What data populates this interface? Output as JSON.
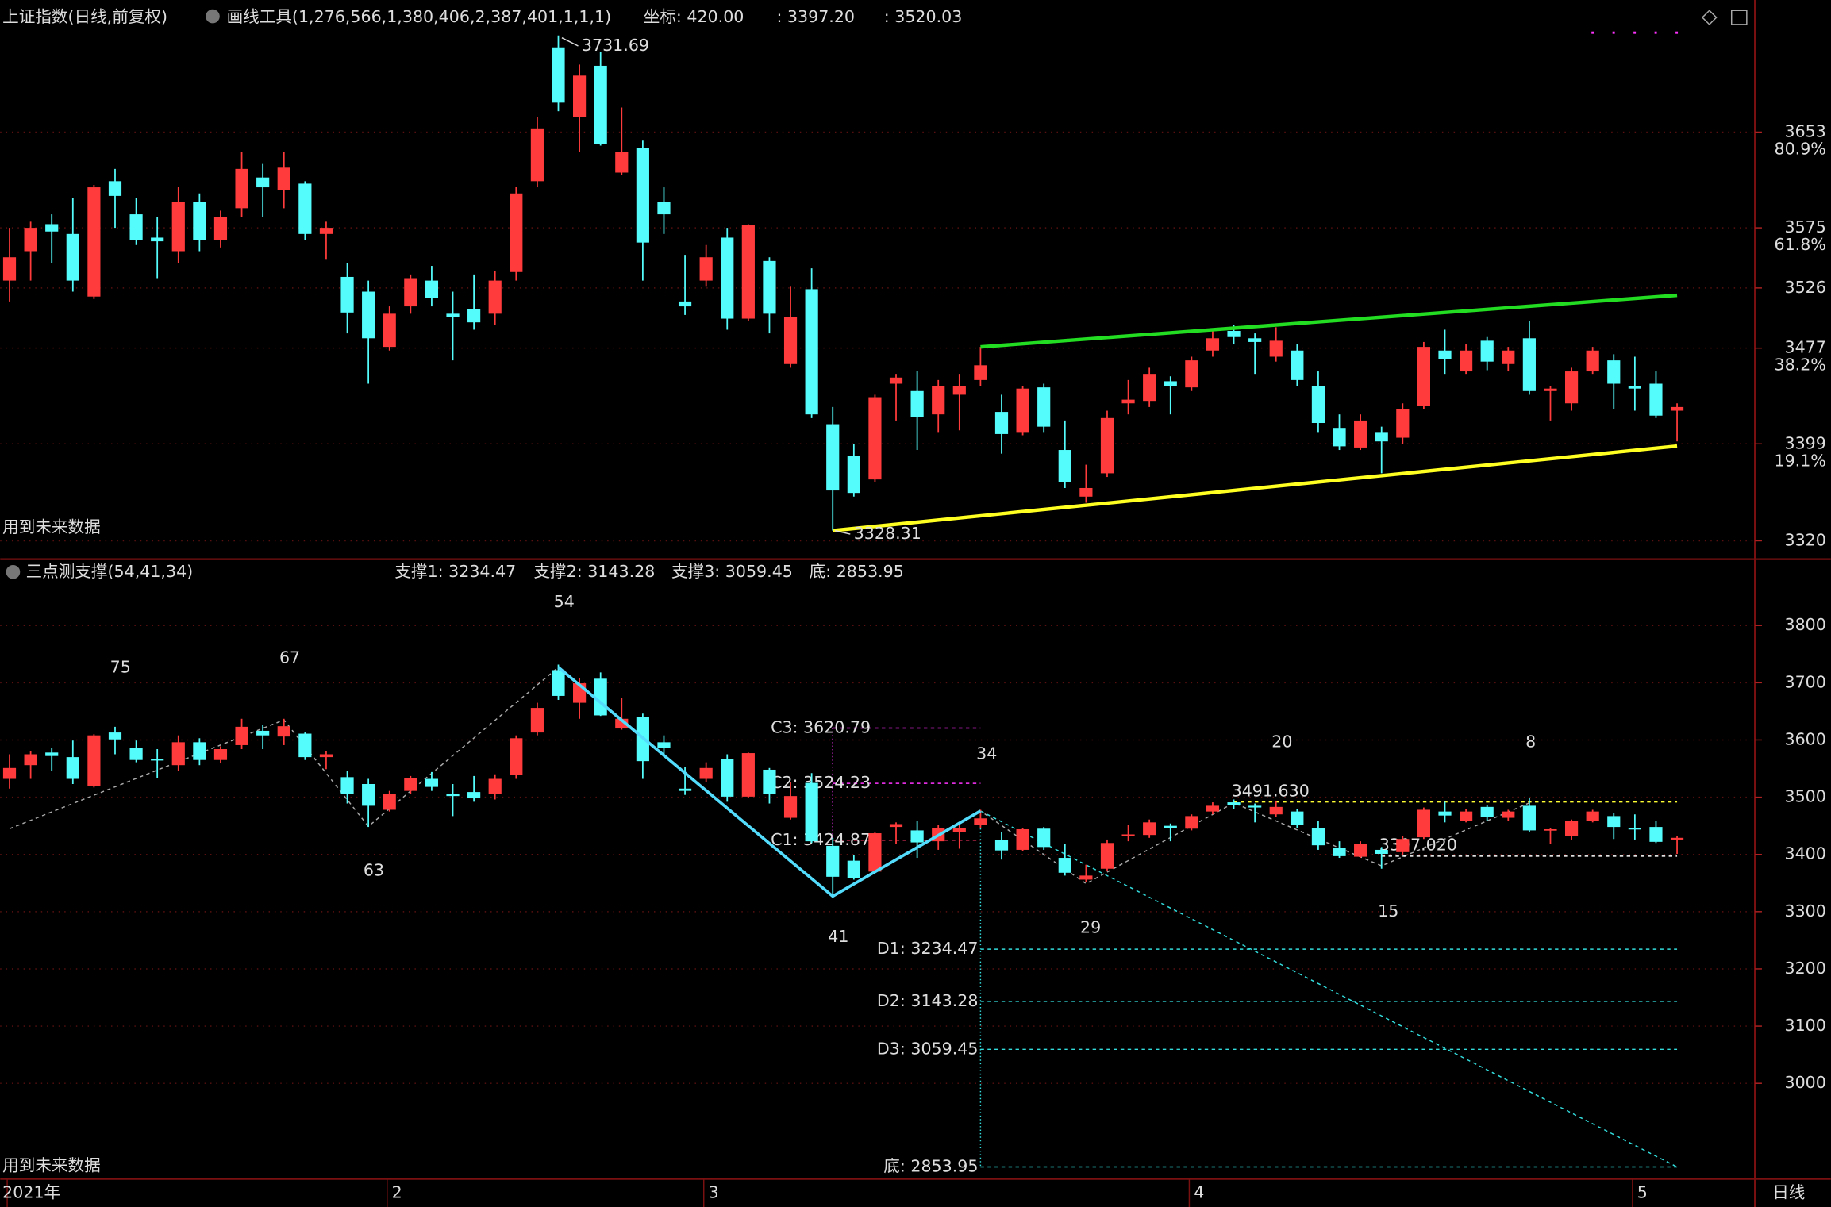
{
  "chart_data": [
    {
      "type": "candlestick",
      "title": "上证指数(日线,前复权)",
      "tool": "画线工具(1,276,566,1,380,406,2,387,401,1,1,1)",
      "coord": "坐标: 420.00",
      "readouts": [
        {
          "label": ": 3397.20",
          "color": "#ffff00"
        },
        {
          "label": ": 3520.03",
          "color": "#33ff33"
        }
      ],
      "note": "用到未来数据",
      "up_color": "#ff3b3b",
      "down_color": "#54fcfc",
      "categories": [
        "2021年",
        null,
        null,
        null,
        null,
        null,
        null,
        null,
        null,
        null,
        null,
        null,
        null,
        null,
        null,
        null,
        null,
        null,
        "2",
        null,
        null,
        null,
        null,
        null,
        null,
        null,
        null,
        null,
        null,
        null,
        null,
        null,
        null,
        "3",
        null,
        null,
        null,
        null,
        null,
        null,
        null,
        null,
        null,
        null,
        null,
        null,
        null,
        null,
        null,
        null,
        null,
        null,
        null,
        null,
        null,
        null,
        "4",
        null,
        null,
        null,
        null,
        null,
        null,
        null,
        null,
        null,
        null,
        null,
        null,
        null,
        null,
        null,
        null,
        null,
        null,
        null,
        null,
        "5",
        null,
        null
      ],
      "ohlc": [
        [
          3532,
          3575,
          3515,
          3551
        ],
        [
          3556,
          3580,
          3532,
          3575
        ],
        [
          3578,
          3586,
          3546,
          3572
        ],
        [
          3570,
          3599,
          3523,
          3532
        ],
        [
          3519,
          3610,
          3517,
          3608
        ],
        [
          3613,
          3623,
          3575,
          3601
        ],
        [
          3586,
          3599,
          3561,
          3565
        ],
        [
          3567,
          3584,
          3534,
          3564
        ],
        [
          3556,
          3608,
          3546,
          3596
        ],
        [
          3596,
          3603,
          3556,
          3565
        ],
        [
          3565,
          3589,
          3559,
          3584
        ],
        [
          3591,
          3637,
          3584,
          3623
        ],
        [
          3616,
          3627,
          3584,
          3608
        ],
        [
          3606,
          3637,
          3591,
          3624
        ],
        [
          3611,
          3613,
          3565,
          3570
        ],
        [
          3570,
          3580,
          3549,
          3575
        ],
        [
          3535,
          3546,
          3489,
          3506
        ],
        [
          3523,
          3532,
          3448,
          3485
        ],
        [
          3478,
          3511,
          3475,
          3505
        ],
        [
          3511,
          3537,
          3505,
          3534
        ],
        [
          3532,
          3544,
          3511,
          3518
        ],
        [
          3505,
          3523,
          3467,
          3502
        ],
        [
          3509,
          3537,
          3492,
          3498
        ],
        [
          3505,
          3540,
          3496,
          3532
        ],
        [
          3539,
          3608,
          3532,
          3603
        ],
        [
          3613,
          3665,
          3608,
          3656
        ],
        [
          3722,
          3731.69,
          3670,
          3677
        ],
        [
          3665,
          3708,
          3637,
          3699
        ],
        [
          3707,
          3718,
          3642,
          3643
        ],
        [
          3620,
          3673,
          3618,
          3637
        ],
        [
          3640,
          3646,
          3532,
          3563
        ],
        [
          3596,
          3608,
          3570,
          3586
        ],
        [
          3515,
          3553,
          3504,
          3511
        ],
        [
          3532,
          3561,
          3527,
          3551
        ],
        [
          3567,
          3575,
          3492,
          3501
        ],
        [
          3501,
          3578,
          3499,
          3577
        ],
        [
          3548,
          3551,
          3489,
          3505
        ],
        [
          3464,
          3527,
          3461,
          3502
        ],
        [
          3525,
          3542,
          3420,
          3423
        ],
        [
          3415,
          3429,
          3328.31,
          3361
        ],
        [
          3389,
          3399,
          3356,
          3359
        ],
        [
          3370,
          3439,
          3368,
          3437
        ],
        [
          3448,
          3456,
          3418,
          3453
        ],
        [
          3442,
          3458,
          3394,
          3421
        ],
        [
          3423,
          3451,
          3408,
          3446
        ],
        [
          3439,
          3456,
          3410,
          3446
        ],
        [
          3451,
          3478,
          3446,
          3463
        ],
        [
          3425,
          3439,
          3391,
          3407
        ],
        [
          3408,
          3446,
          3406,
          3444
        ],
        [
          3445,
          3448,
          3408,
          3413
        ],
        [
          3394,
          3418,
          3363,
          3368
        ],
        [
          3356,
          3382,
          3351,
          3363
        ],
        [
          3375,
          3426,
          3372,
          3420
        ],
        [
          3432,
          3451,
          3423,
          3435
        ],
        [
          3434,
          3461,
          3429,
          3456
        ],
        [
          3450,
          3454,
          3423,
          3446
        ],
        [
          3445,
          3470,
          3442,
          3467
        ],
        [
          3475,
          3491,
          3470,
          3485
        ],
        [
          3491,
          3496,
          3480,
          3486
        ],
        [
          3485,
          3489,
          3456,
          3482
        ],
        [
          3470,
          3494,
          3466,
          3483
        ],
        [
          3475,
          3480,
          3446,
          3451
        ],
        [
          3446,
          3458,
          3408,
          3416
        ],
        [
          3412,
          3423,
          3394,
          3397
        ],
        [
          3396,
          3423,
          3394,
          3418
        ],
        [
          3408,
          3413,
          3375,
          3401
        ],
        [
          3404,
          3432,
          3399,
          3427
        ],
        [
          3430,
          3482,
          3427,
          3478
        ],
        [
          3475,
          3492,
          3456,
          3468
        ],
        [
          3458,
          3480,
          3456,
          3475
        ],
        [
          3483,
          3486,
          3459,
          3466
        ],
        [
          3464,
          3478,
          3458,
          3475
        ],
        [
          3485,
          3499,
          3439,
          3442
        ],
        [
          3442,
          3446,
          3418,
          3444
        ],
        [
          3432,
          3461,
          3426,
          3458
        ],
        [
          3458,
          3478,
          3456,
          3475
        ],
        [
          3467,
          3472,
          3427,
          3448
        ],
        [
          3446,
          3470,
          3426,
          3444
        ],
        [
          3448,
          3458,
          3420,
          3422
        ],
        [
          3426,
          3432,
          3401,
          3429
        ]
      ],
      "ylim": [
        3306,
        3734
      ],
      "yticks": [
        3653,
        3575,
        3526,
        3477,
        3399,
        3320
      ],
      "pct_ticks": [
        {
          "value": 3653,
          "label": "80.9%"
        },
        {
          "value": 3575,
          "label": "61.8%"
        },
        {
          "value": 3477,
          "label": "38.2%"
        },
        {
          "value": 3399,
          "label": "19.1%"
        }
      ],
      "trendlines": [
        {
          "color": "#22dd22",
          "points": [
            [
              46,
              3478
            ],
            [
              79,
              3520.03
            ]
          ]
        },
        {
          "color": "#ffff22",
          "points": [
            [
              39,
              3328.31
            ],
            [
              79,
              3397.2
            ]
          ]
        }
      ],
      "period": "日线"
    },
    {
      "type": "indicator",
      "title": "三点测支撑(54,41,34)",
      "legend": [
        "支撑1: 3234.47",
        "支撑2: 3143.28",
        "支撑3: 3059.45",
        "底: 2853.95"
      ],
      "legend_color": "#33ccff",
      "note": "用到未来数据",
      "ylim": [
        2837,
        3867
      ],
      "yticks": [
        3800,
        3700,
        3600,
        3500,
        3400,
        3300,
        3200,
        3100,
        3000
      ],
      "zigzag": [
        [
          0,
          3445
        ],
        [
          13,
          3635
        ],
        [
          17,
          3449
        ],
        [
          26,
          3727
        ],
        [
          39,
          3327
        ],
        [
          46,
          3476
        ],
        [
          51,
          3349
        ],
        [
          58,
          3490
        ],
        [
          65,
          3380
        ],
        [
          72,
          3490
        ]
      ],
      "wave": [
        [
          26,
          3727
        ],
        [
          39,
          3327
        ],
        [
          46,
          3476
        ]
      ],
      "projection": [
        [
          46,
          3476
        ],
        [
          79,
          2853.95
        ]
      ],
      "levels": [
        {
          "label": "C3: 3620.79",
          "value": 3620.79,
          "color": "#ff33ff"
        },
        {
          "label": "C2: 3524.23",
          "value": 3524.23,
          "color": "#ff33ff"
        },
        {
          "label": "C1: 3424.87",
          "value": 3424.87,
          "color": "#ff3366"
        },
        {
          "label": "D1: 3234.47",
          "value": 3234.47,
          "color": "#33dddd"
        },
        {
          "label": "D2: 3143.28",
          "value": 3143.28,
          "color": "#33dddd"
        },
        {
          "label": "D3: 3059.45",
          "value": 3059.45,
          "color": "#33dddd"
        },
        {
          "label": "底: 2853.95",
          "value": 2853.95,
          "color": "#33dddd"
        }
      ],
      "marks": [
        {
          "label": "3491.630",
          "value": 3491.63,
          "color": "#ffff33"
        },
        {
          "label": "3397.020",
          "value": 3397.02,
          "color": "#ffffff"
        }
      ],
      "wave_labels": [
        {
          "value": 75,
          "color": "#33cc33"
        },
        {
          "value": 67,
          "color": "#33cc33"
        },
        {
          "value": 54,
          "color": "#33cc33"
        },
        {
          "value": 63,
          "color": "#ff7777"
        },
        {
          "value": 41,
          "color": "#ff7777"
        },
        {
          "value": 29,
          "color": "#ff7777"
        },
        {
          "value": 34,
          "color": "#33cc33"
        },
        {
          "value": 20,
          "color": "#33cc33"
        },
        {
          "value": 8,
          "color": "#33cc33"
        },
        {
          "value": 15,
          "color": "#ff7777"
        }
      ]
    }
  ]
}
